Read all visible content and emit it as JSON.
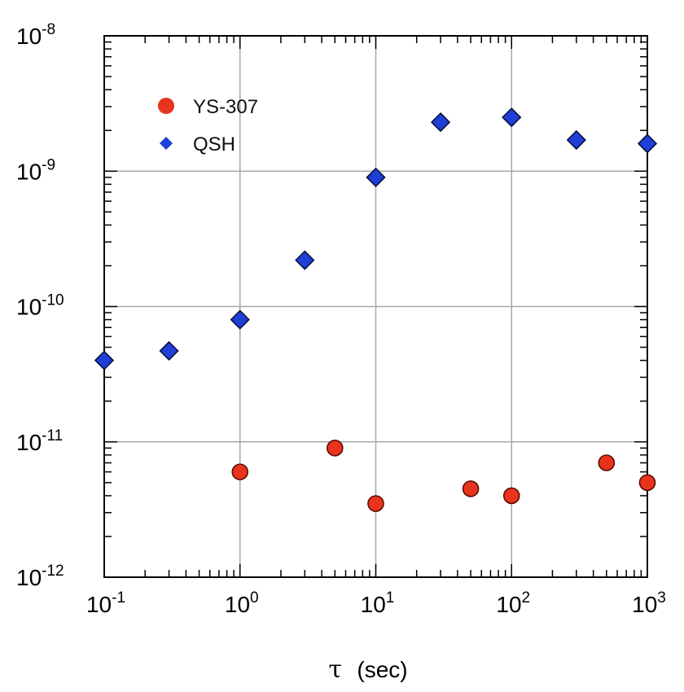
{
  "chart_data": {
    "type": "scatter",
    "title": "",
    "xlabel": {
      "symbol": "τ",
      "unit": "(sec)"
    },
    "ylabel": "",
    "xscale": "log",
    "yscale": "log",
    "xlim": [
      0.1,
      1000
    ],
    "ylim": [
      1e-12,
      1e-08
    ],
    "grid": true,
    "legend_position": "top-left",
    "x_ticks": [
      {
        "base": "10",
        "exp": "-1"
      },
      {
        "base": "10",
        "exp": "0"
      },
      {
        "base": "10",
        "exp": "1"
      },
      {
        "base": "10",
        "exp": "2"
      },
      {
        "base": "10",
        "exp": "3"
      }
    ],
    "y_ticks": [
      {
        "base": "10",
        "exp": "-8"
      },
      {
        "base": "10",
        "exp": "-9"
      },
      {
        "base": "10",
        "exp": "-10"
      },
      {
        "base": "10",
        "exp": "-11"
      },
      {
        "base": "10",
        "exp": "-12"
      }
    ],
    "series": [
      {
        "name": "YS-307",
        "marker": "circle",
        "color": "#e8341c",
        "points": [
          {
            "x": 1,
            "y": 6e-12
          },
          {
            "x": 5,
            "y": 9e-12
          },
          {
            "x": 10,
            "y": 3.5e-12
          },
          {
            "x": 50,
            "y": 4.5e-12
          },
          {
            "x": 100,
            "y": 4e-12
          },
          {
            "x": 500,
            "y": 7e-12
          },
          {
            "x": 1000,
            "y": 5e-12
          }
        ]
      },
      {
        "name": "QSH",
        "marker": "diamond",
        "color": "#1f3fd6",
        "points": [
          {
            "x": 0.1,
            "y": 4e-11
          },
          {
            "x": 0.3,
            "y": 4.7e-11
          },
          {
            "x": 1,
            "y": 8e-11
          },
          {
            "x": 3,
            "y": 2.2e-10
          },
          {
            "x": 10,
            "y": 9e-10
          },
          {
            "x": 30,
            "y": 2.3e-09
          },
          {
            "x": 100,
            "y": 2.5e-09
          },
          {
            "x": 300,
            "y": 1.7e-09
          },
          {
            "x": 1000,
            "y": 1.6e-09
          }
        ]
      }
    ]
  }
}
